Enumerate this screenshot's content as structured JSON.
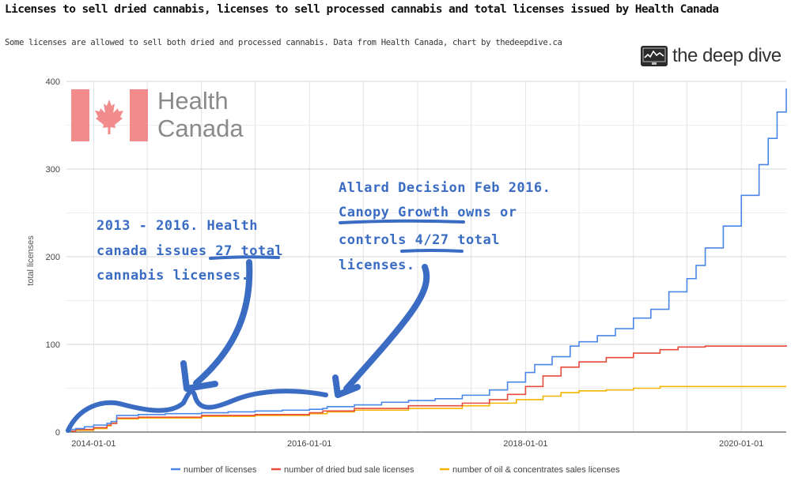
{
  "title": "Licenses to sell dried cannabis, licenses to sell processed cannabis and total licenses issued by Health Canada",
  "subtitle": "Some licenses are allowed to sell both dried and processed cannabis. Data from Health Canada, chart by thedeepdive.ca",
  "brand": {
    "name": "the deep dive",
    "icon": "chart-monitor-icon"
  },
  "health_canada_logo": {
    "line1": "Health",
    "line2": "Canada",
    "icon": "maple-leaf-icon",
    "color": "#f28b8b"
  },
  "annotations": [
    {
      "lines": [
        "2013 - 2016. Health",
        "canada issues 27 total",
        "cannabis licenses."
      ],
      "underlined": "27 total"
    },
    {
      "lines": [
        "Allard Decision Feb 2016.",
        "Canopy Growth owns or",
        "controls 4/27 total",
        "licenses."
      ],
      "underlined": [
        "Canopy Growth",
        "4/27"
      ]
    }
  ],
  "chart_data": {
    "type": "line",
    "title": "Licenses to sell dried cannabis, licenses to sell processed cannabis and total licenses issued by Health Canada",
    "ylabel": "total licenses",
    "xlabel": "",
    "ylim": [
      0,
      400
    ],
    "yticks": [
      "0",
      "100",
      "200",
      "300",
      "400"
    ],
    "xticks": [
      "2014-01-01",
      "2016-01-01",
      "2018-01-01",
      "2020-01-01"
    ],
    "xlim": [
      "2013-10-01",
      "2020-06-01"
    ],
    "grid": true,
    "legend_position": "bottom",
    "series": [
      {
        "name": "number of licenses",
        "color": "#4a86e8",
        "points": [
          [
            "2013-10-01",
            1
          ],
          [
            "2013-10-15",
            3
          ],
          [
            "2013-11-01",
            4
          ],
          [
            "2013-12-01",
            6
          ],
          [
            "2014-01-01",
            8
          ],
          [
            "2014-02-15",
            10
          ],
          [
            "2014-03-01",
            12
          ],
          [
            "2014-03-20",
            19
          ],
          [
            "2014-06-01",
            20
          ],
          [
            "2014-09-01",
            21
          ],
          [
            "2015-01-01",
            22
          ],
          [
            "2015-04-01",
            23
          ],
          [
            "2015-07-01",
            24
          ],
          [
            "2015-10-01",
            25
          ],
          [
            "2016-01-01",
            26
          ],
          [
            "2016-02-15",
            27
          ],
          [
            "2016-03-01",
            29
          ],
          [
            "2016-06-01",
            31
          ],
          [
            "2016-09-01",
            34
          ],
          [
            "2016-12-01",
            36
          ],
          [
            "2017-03-01",
            38
          ],
          [
            "2017-06-01",
            42
          ],
          [
            "2017-09-01",
            48
          ],
          [
            "2017-11-01",
            57
          ],
          [
            "2018-01-01",
            68
          ],
          [
            "2018-02-01",
            77
          ],
          [
            "2018-04-01",
            86
          ],
          [
            "2018-06-01",
            98
          ],
          [
            "2018-07-01",
            103
          ],
          [
            "2018-09-01",
            110
          ],
          [
            "2018-11-01",
            118
          ],
          [
            "2019-01-01",
            130
          ],
          [
            "2019-03-01",
            140
          ],
          [
            "2019-05-01",
            160
          ],
          [
            "2019-07-01",
            175
          ],
          [
            "2019-08-01",
            190
          ],
          [
            "2019-09-01",
            210
          ],
          [
            "2019-11-01",
            235
          ],
          [
            "2020-01-01",
            270
          ],
          [
            "2020-03-01",
            305
          ],
          [
            "2020-04-01",
            335
          ],
          [
            "2020-05-01",
            365
          ],
          [
            "2020-06-01",
            392
          ]
        ]
      },
      {
        "name": "number of dried bud sale licenses",
        "color": "#e64b3c",
        "points": [
          [
            "2013-10-01",
            1
          ],
          [
            "2013-11-01",
            3
          ],
          [
            "2014-01-01",
            5
          ],
          [
            "2014-02-15",
            8
          ],
          [
            "2014-03-01",
            10
          ],
          [
            "2014-03-20",
            16
          ],
          [
            "2014-06-01",
            17
          ],
          [
            "2015-01-01",
            19
          ],
          [
            "2015-07-01",
            20
          ],
          [
            "2016-01-01",
            22
          ],
          [
            "2016-02-15",
            24
          ],
          [
            "2016-06-01",
            27
          ],
          [
            "2016-12-01",
            30
          ],
          [
            "2017-06-01",
            33
          ],
          [
            "2017-09-01",
            37
          ],
          [
            "2017-11-01",
            43
          ],
          [
            "2018-01-01",
            52
          ],
          [
            "2018-03-01",
            64
          ],
          [
            "2018-05-01",
            74
          ],
          [
            "2018-07-01",
            80
          ],
          [
            "2018-10-01",
            85
          ],
          [
            "2019-01-01",
            90
          ],
          [
            "2019-04-01",
            94
          ],
          [
            "2019-06-01",
            97
          ],
          [
            "2019-09-01",
            98
          ],
          [
            "2020-06-01",
            99
          ]
        ]
      },
      {
        "name": "number of oil & concentrates sales licenses",
        "color": "#f4b400",
        "points": [
          [
            "2013-10-01",
            1
          ],
          [
            "2013-11-01",
            2
          ],
          [
            "2014-01-01",
            4
          ],
          [
            "2014-02-15",
            7
          ],
          [
            "2014-03-01",
            10
          ],
          [
            "2014-03-20",
            15
          ],
          [
            "2014-06-01",
            16
          ],
          [
            "2015-01-01",
            18
          ],
          [
            "2015-07-01",
            19
          ],
          [
            "2016-01-01",
            21
          ],
          [
            "2016-03-01",
            23
          ],
          [
            "2016-06-01",
            25
          ],
          [
            "2016-12-01",
            27
          ],
          [
            "2017-06-01",
            30
          ],
          [
            "2017-09-01",
            33
          ],
          [
            "2017-12-01",
            37
          ],
          [
            "2018-03-01",
            41
          ],
          [
            "2018-05-01",
            45
          ],
          [
            "2018-07-01",
            47
          ],
          [
            "2018-10-01",
            48
          ],
          [
            "2019-01-01",
            50
          ],
          [
            "2019-04-01",
            52
          ],
          [
            "2020-06-01",
            52
          ]
        ]
      }
    ]
  }
}
